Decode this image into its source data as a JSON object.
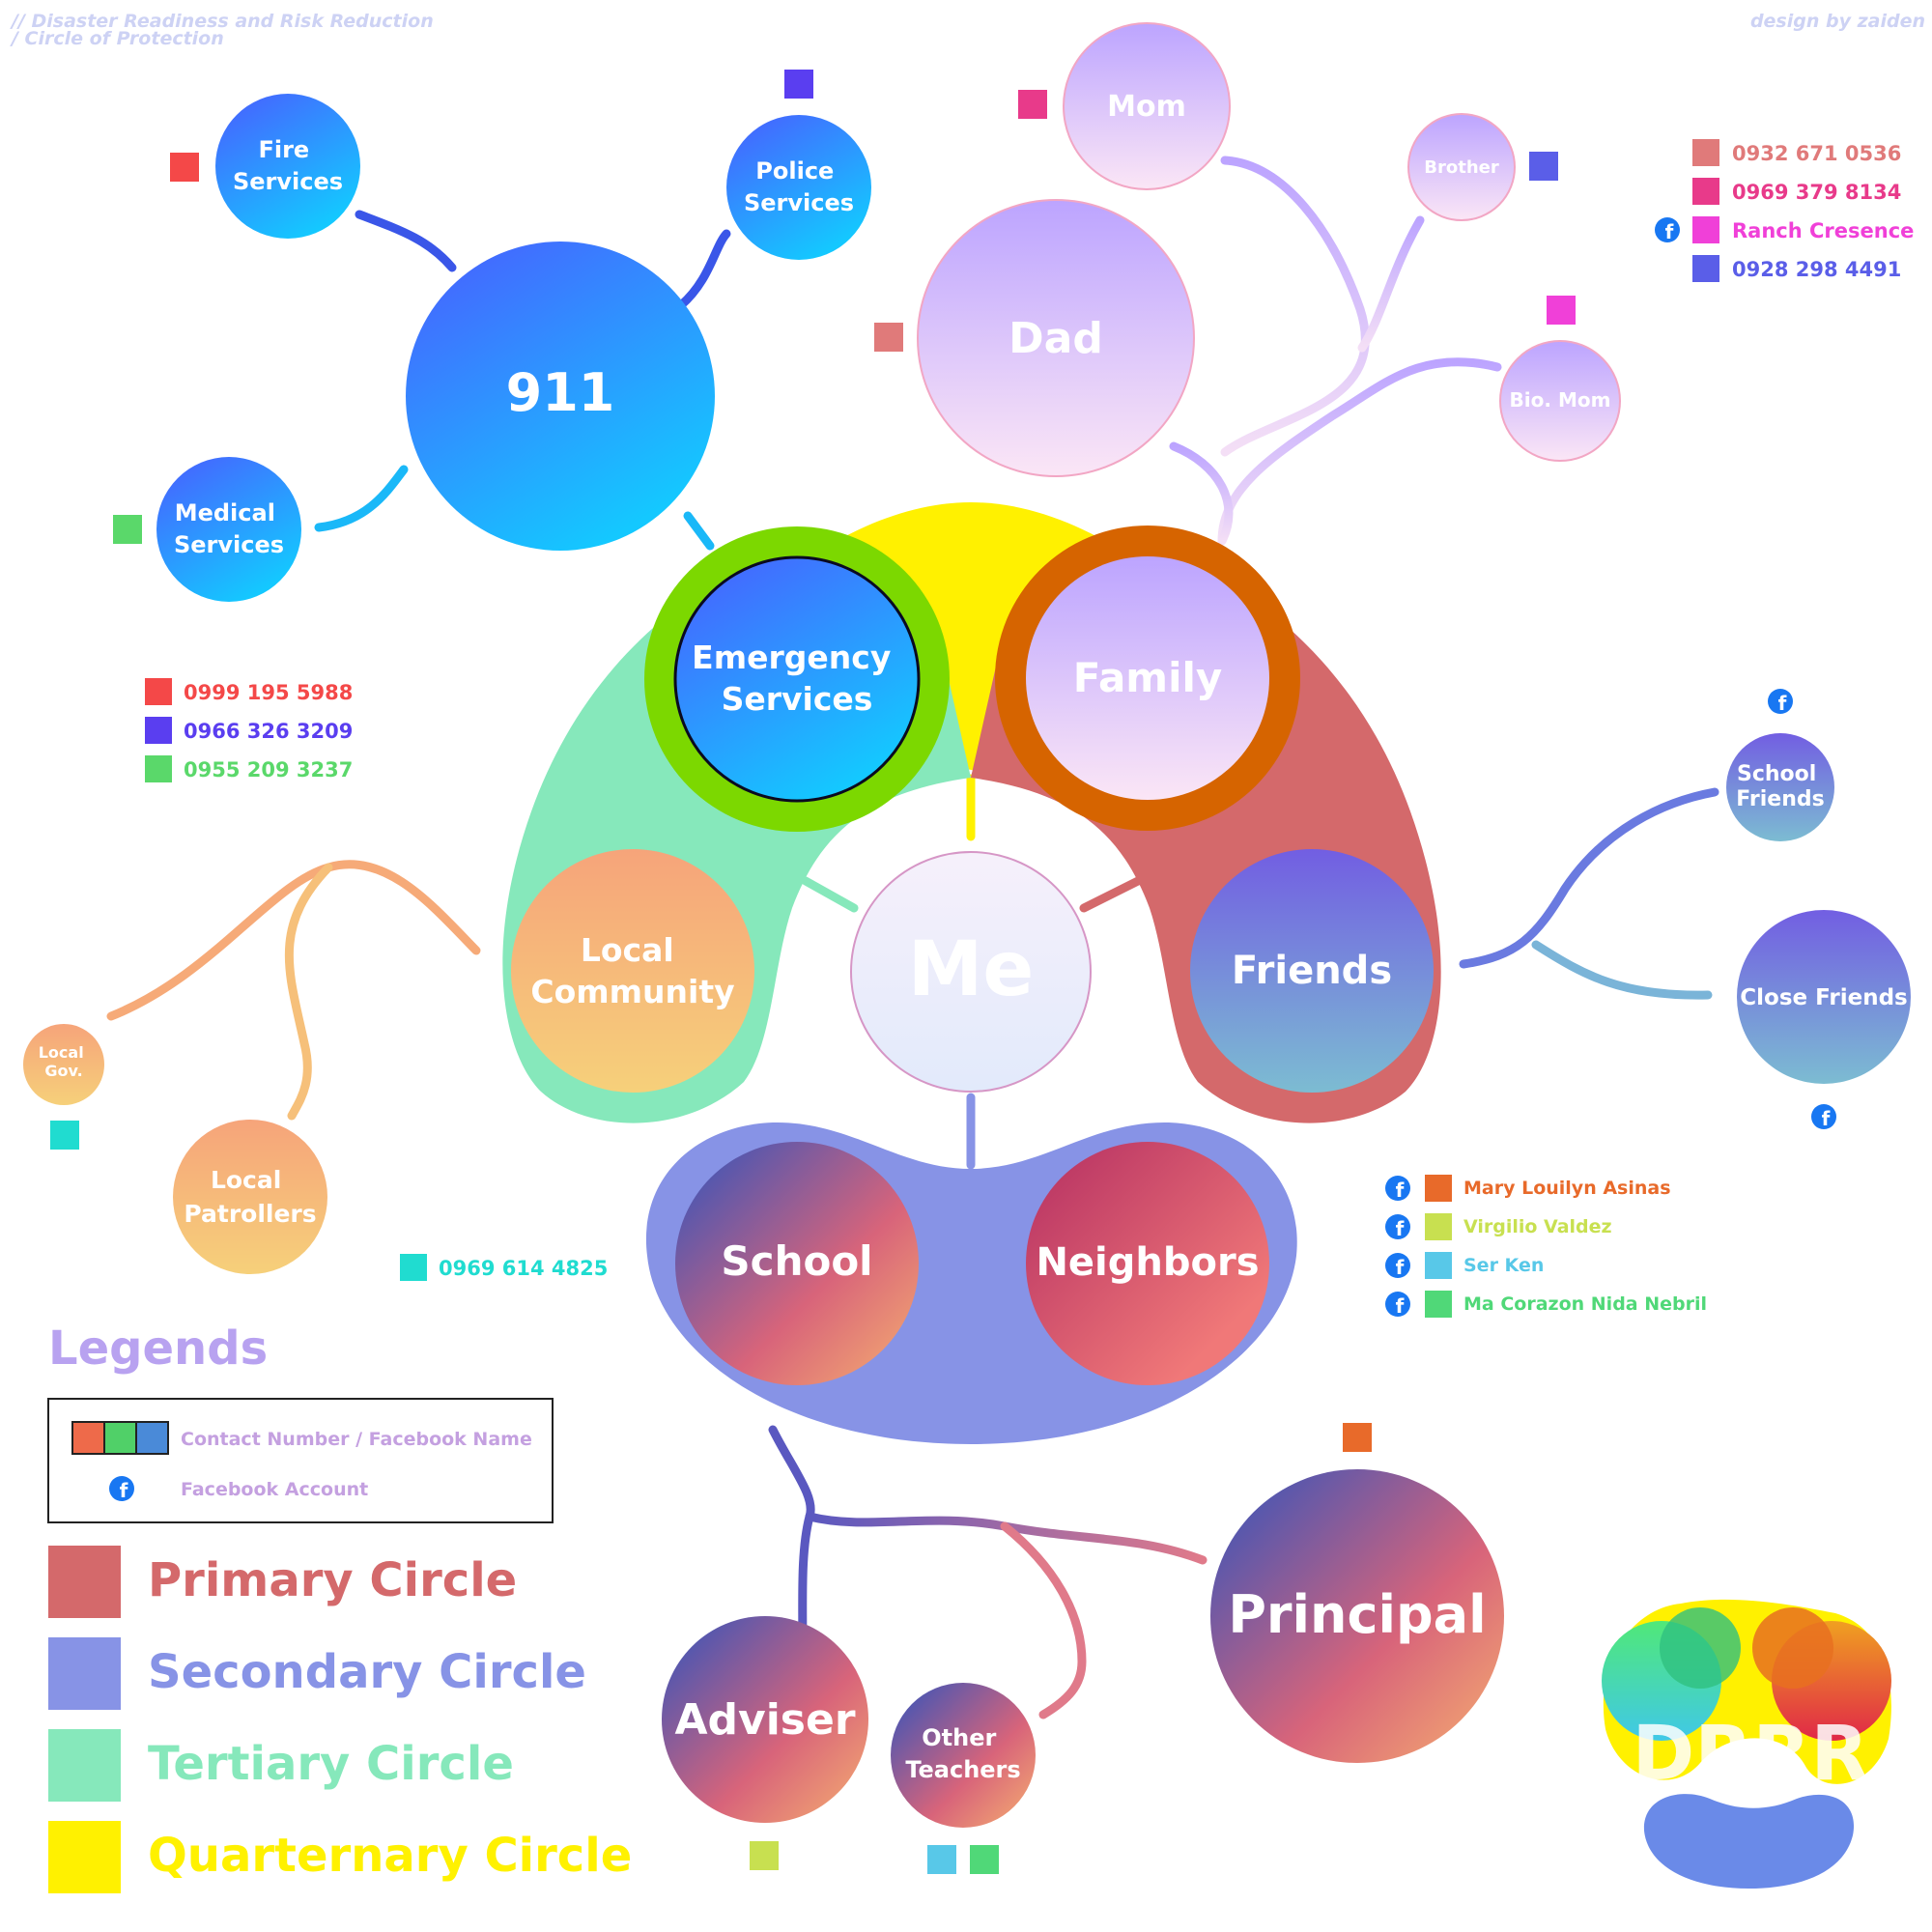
{
  "header": {
    "title_line1": "// Disaster Readiness and Risk Reduction",
    "title_line2": "/ Circle of Protection",
    "credit": "design by zaiden"
  },
  "center": {
    "label": "Me"
  },
  "groups": {
    "emergency": {
      "label_line1": "Emergency",
      "label_line2": "Services"
    },
    "family": {
      "label": "Family"
    },
    "friends": {
      "label": "Friends"
    },
    "community": {
      "label_line1": "Local",
      "label_line2": "Community"
    },
    "school": {
      "label": "School"
    },
    "neighbors": {
      "label": "Neighbors"
    }
  },
  "emergency_nodes": {
    "hub": "911",
    "fire": {
      "line1": "Fire",
      "line2": "Services"
    },
    "police": {
      "line1": "Police",
      "line2": "Services"
    },
    "medical": {
      "line1": "Medical",
      "line2": "Services"
    }
  },
  "emergency_contacts": [
    {
      "number": "0999 195 5988",
      "color": "#f44848"
    },
    {
      "number": "0966 326 3209",
      "color": "#5a3ef0"
    },
    {
      "number": "0955 209 3237",
      "color": "#5ad86a"
    }
  ],
  "family_nodes": {
    "mom": "Mom",
    "dad": "Dad",
    "brother": "Brother",
    "bio_mom": "Bio. Mom"
  },
  "family_contacts": [
    {
      "label": "0932 671 0536",
      "color": "#e07a7a",
      "facebook": false
    },
    {
      "label": "0969 379 8134",
      "color": "#e83a8a",
      "facebook": false
    },
    {
      "label": "Ranch Cresence",
      "color": "#f040d8",
      "facebook": true
    },
    {
      "label": "0928 298 4491",
      "color": "#5a5ee8",
      "facebook": false
    }
  ],
  "friends_nodes": {
    "school_friends": {
      "line1": "School",
      "line2": "Friends"
    },
    "close_friends": "Close Friends"
  },
  "community_nodes": {
    "local_gov": {
      "line1": "Local",
      "line2": "Gov."
    },
    "patrollers": {
      "line1": "Local",
      "line2": "Patrollers"
    }
  },
  "community_contact": {
    "number": "0969 614 4825",
    "color": "#20dcd0"
  },
  "school_nodes": {
    "principal": "Principal",
    "adviser": "Adviser",
    "other_teachers": {
      "line1": "Other",
      "line2": "Teachers"
    }
  },
  "school_contacts": [
    {
      "name": "Mary Louilyn Asinas",
      "color": "#e86a2a"
    },
    {
      "name": "Virgilio Valdez",
      "color": "#c8e050"
    },
    {
      "name": "Ser Ken",
      "color": "#58c8e8"
    },
    {
      "name": "Ma Corazon Nida Nebril",
      "color": "#50d878"
    }
  ],
  "legend": {
    "title": "Legends",
    "contact_text": "Contact Number / Facebook Name",
    "facebook_text": "Facebook Account",
    "circles": [
      {
        "label": "Primary Circle",
        "color": "#d4696b"
      },
      {
        "label": "Secondary Circle",
        "color": "#8793e6"
      },
      {
        "label": "Tertiary Circle",
        "color": "#86e8bb"
      },
      {
        "label": "Quarternary Circle",
        "color": "#fff100"
      }
    ]
  },
  "logo": {
    "text": "DRRR"
  }
}
